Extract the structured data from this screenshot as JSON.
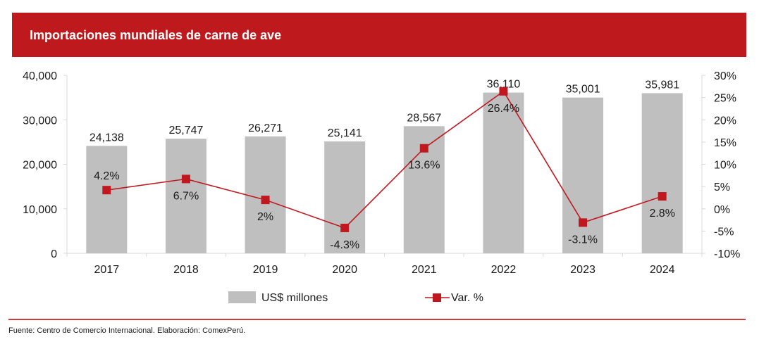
{
  "header": {
    "title": "Importaciones mundiales de carne de ave"
  },
  "colors": {
    "brand_red": "#be1a1e",
    "bar": "#bfbfbf",
    "line": "#c0181f",
    "axis": "#d9d9d9"
  },
  "chart_data": {
    "type": "bar+line",
    "title": "Importaciones mundiales de carne de ave",
    "categories": [
      "2017",
      "2018",
      "2019",
      "2020",
      "2021",
      "2022",
      "2023",
      "2024"
    ],
    "series": [
      {
        "name": "US$ millones",
        "type": "bar",
        "axis": "left",
        "values": [
          24138,
          25747,
          26271,
          25141,
          28567,
          36110,
          35001,
          35981
        ],
        "labels": [
          "24,138",
          "25,747",
          "26,271",
          "25,141",
          "28,567",
          "36,110",
          "35,001",
          "35,981"
        ]
      },
      {
        "name": "Var. %",
        "type": "line",
        "axis": "right",
        "values": [
          4.2,
          6.7,
          2.0,
          -4.3,
          13.6,
          26.4,
          -3.1,
          2.8
        ],
        "labels": [
          "4.2%",
          "6.7%",
          "2%",
          "-4.3%",
          "13.6%",
          "26.4%",
          "-3.1%",
          "2.8%"
        ],
        "label_position": [
          "above",
          "below",
          "below",
          "below",
          "below",
          "below",
          "below",
          "below"
        ]
      }
    ],
    "y_left": {
      "range": [
        0,
        40000
      ],
      "ticks": [
        "0",
        "10,000",
        "20,000",
        "30,000",
        "40,000"
      ]
    },
    "y_right": {
      "range": [
        -10,
        30
      ],
      "ticks": [
        "-10%",
        "-5%",
        "0%",
        "5%",
        "10%",
        "15%",
        "20%",
        "25%",
        "30%"
      ]
    },
    "grid": false,
    "legend": {
      "position": "bottom",
      "items": [
        "US$ millones",
        "Var. %"
      ]
    }
  },
  "footer": {
    "source": "Fuente: Centro de Comercio Internacional. Elaboración: ComexPerú."
  }
}
